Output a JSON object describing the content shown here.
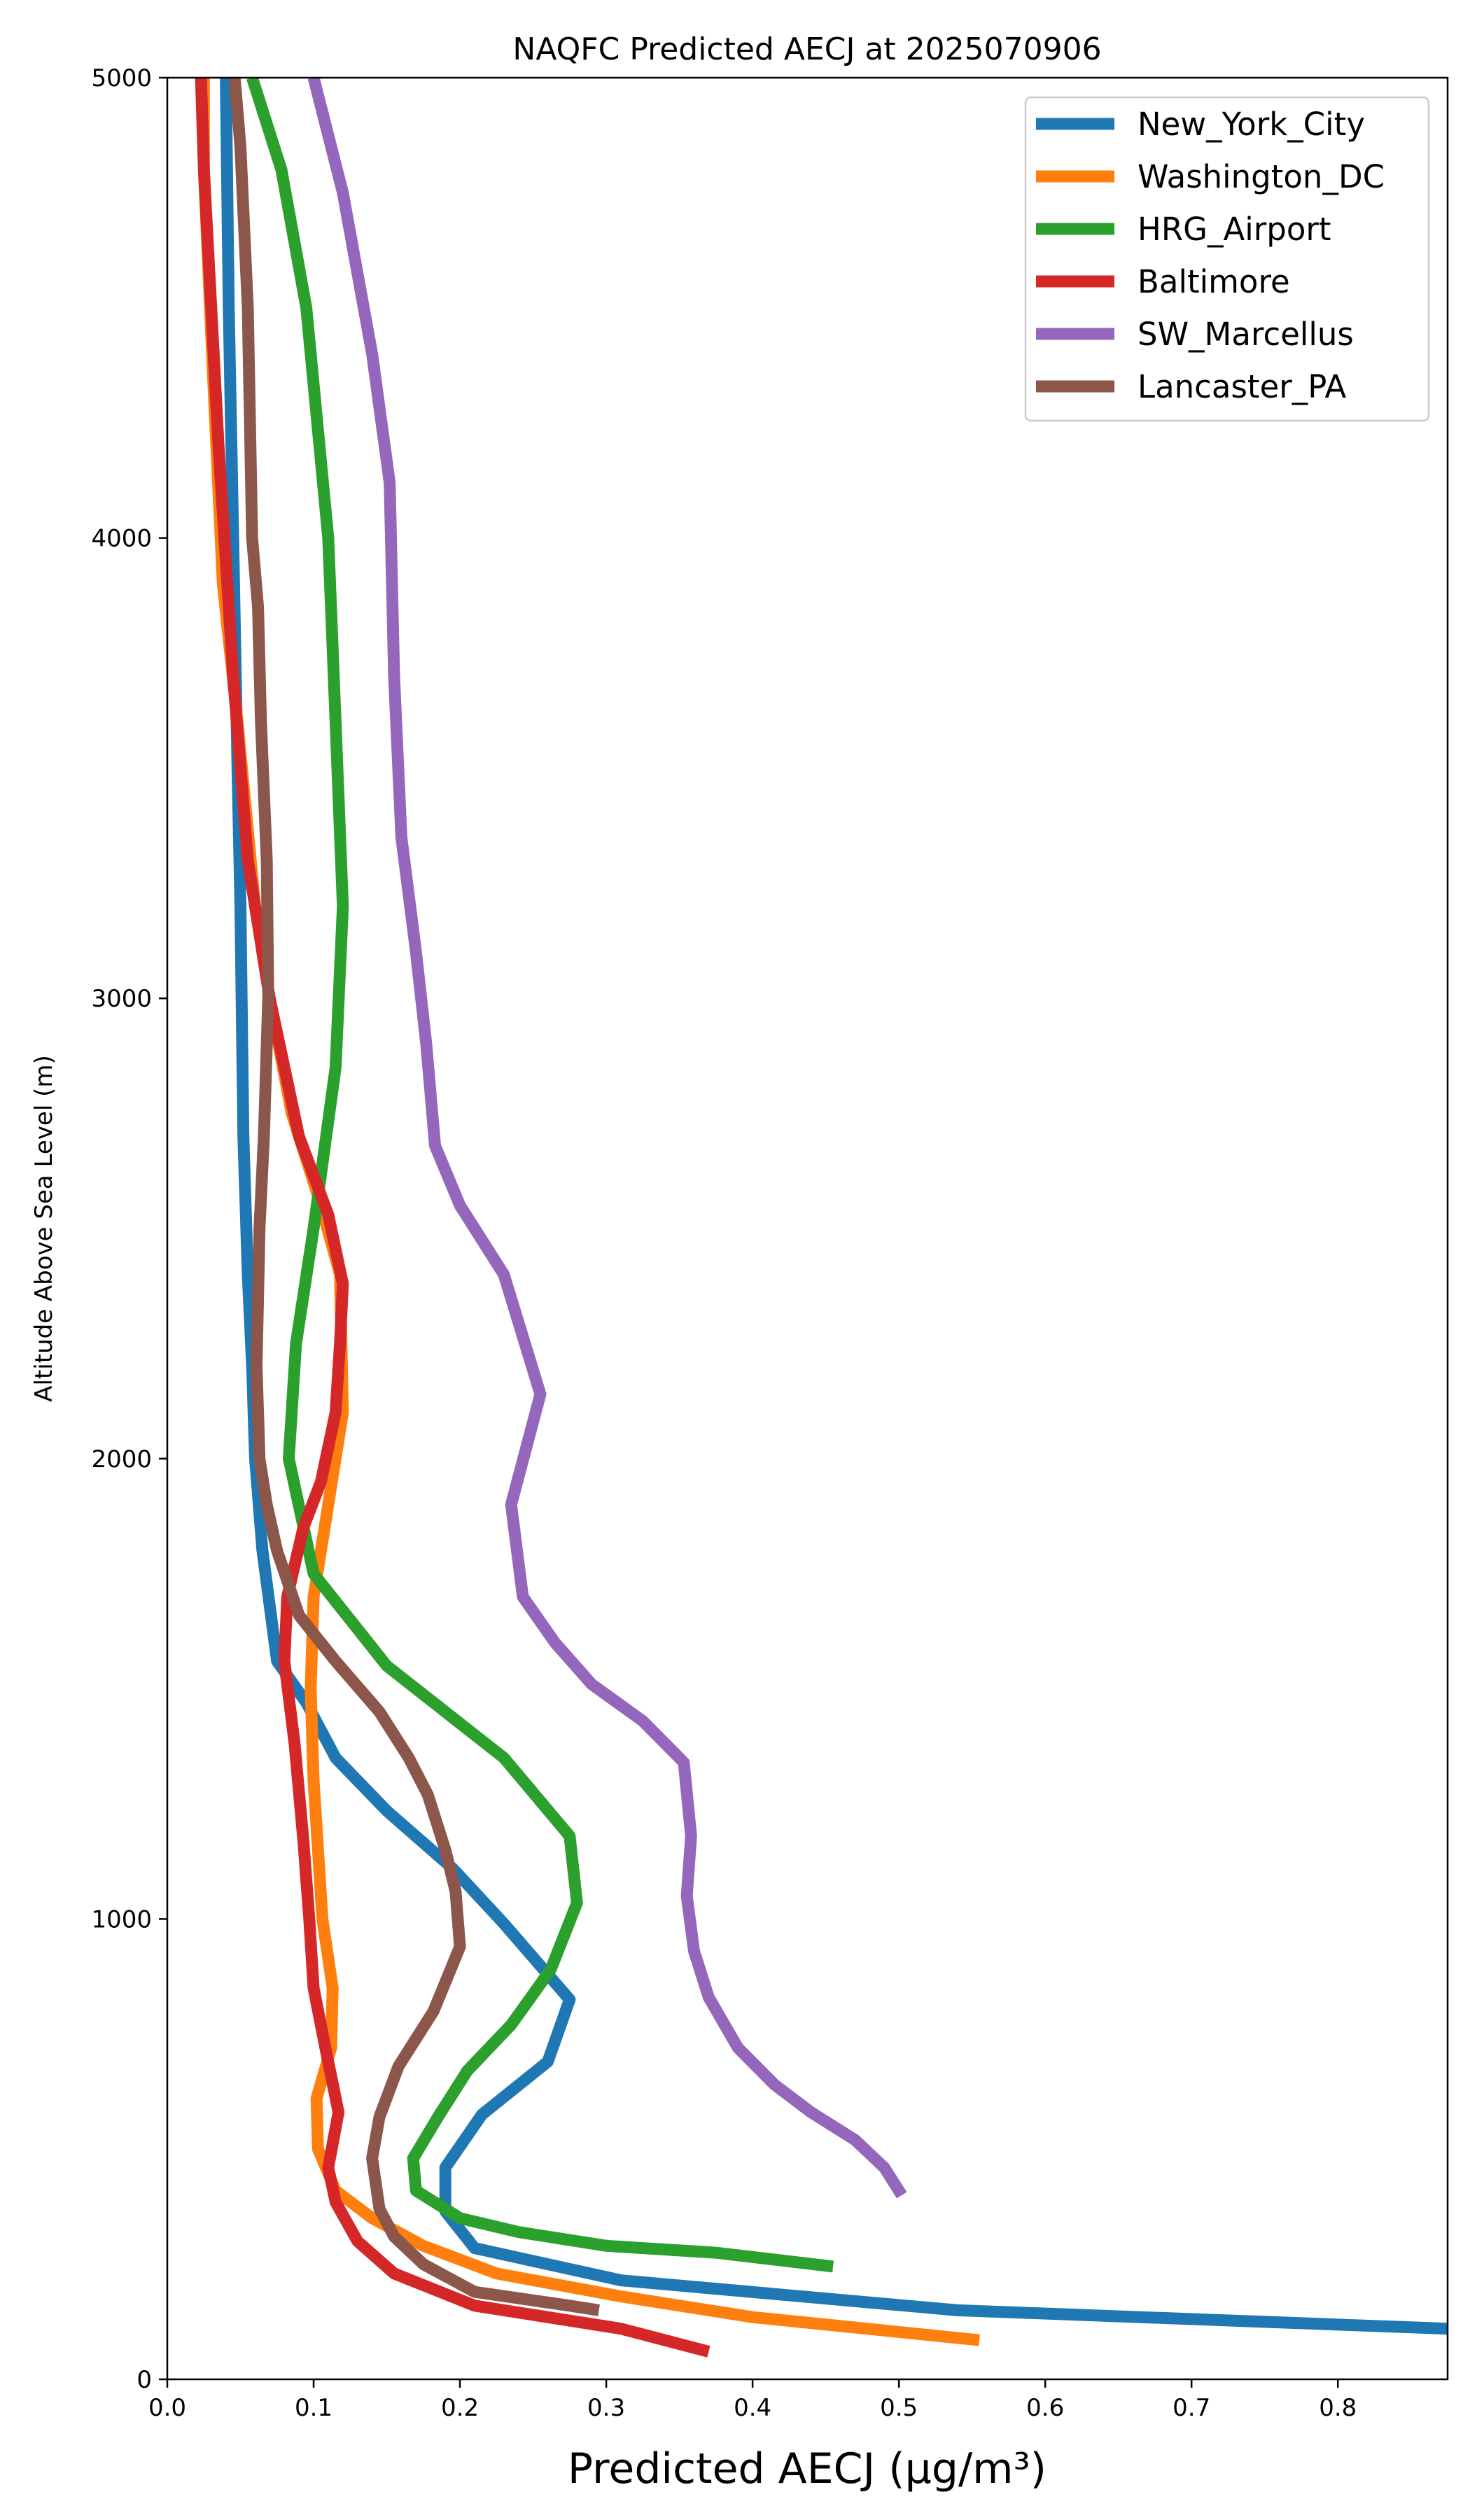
{
  "chart_data": {
    "type": "line",
    "title": "NAQFC Predicted AECJ at 2025070906",
    "xlabel": "Predicted AECJ (μg/m³)",
    "ylabel": "Altitude Above Sea Level (m)",
    "xlim": [
      0,
      0.875
    ],
    "ylim": [
      0,
      5000
    ],
    "xticks": [
      "0.0",
      "0.1",
      "0.2",
      "0.3",
      "0.4",
      "0.5",
      "0.6",
      "0.7",
      "0.8"
    ],
    "yticks": [
      "0",
      "1000",
      "2000",
      "3000",
      "4000",
      "5000"
    ],
    "grid": false,
    "legend_position": "top-right",
    "series": [
      {
        "name": "New_York_City",
        "color": "#1f77b4",
        "points": [
          [
            0.875,
            110
          ],
          [
            0.54,
            150
          ],
          [
            0.31,
            215
          ],
          [
            0.21,
            285
          ],
          [
            0.19,
            365
          ],
          [
            0.19,
            460
          ],
          [
            0.215,
            575
          ],
          [
            0.26,
            690
          ],
          [
            0.275,
            825
          ],
          [
            0.23,
            990
          ],
          [
            0.195,
            1110
          ],
          [
            0.15,
            1235
          ],
          [
            0.115,
            1350
          ],
          [
            0.095,
            1470
          ],
          [
            0.075,
            1560
          ],
          [
            0.065,
            1800
          ],
          [
            0.06,
            2000
          ],
          [
            0.058,
            2200
          ],
          [
            0.055,
            2400
          ],
          [
            0.052,
            2700
          ],
          [
            0.05,
            3200
          ],
          [
            0.048,
            3500
          ],
          [
            0.045,
            4000
          ],
          [
            0.042,
            4500
          ],
          [
            0.04,
            5000
          ]
        ]
      },
      {
        "name": "Washington_DC",
        "color": "#ff7f0e",
        "points": [
          [
            0.555,
            85
          ],
          [
            0.4,
            135
          ],
          [
            0.31,
            180
          ],
          [
            0.225,
            230
          ],
          [
            0.175,
            290
          ],
          [
            0.14,
            350
          ],
          [
            0.115,
            410
          ],
          [
            0.103,
            500
          ],
          [
            0.102,
            610
          ],
          [
            0.112,
            720
          ],
          [
            0.113,
            850
          ],
          [
            0.106,
            1000
          ],
          [
            0.1,
            1300
          ],
          [
            0.098,
            1500
          ],
          [
            0.1,
            1700
          ],
          [
            0.11,
            1900
          ],
          [
            0.12,
            2100
          ],
          [
            0.118,
            2400
          ],
          [
            0.105,
            2550
          ],
          [
            0.085,
            2750
          ],
          [
            0.07,
            3000
          ],
          [
            0.06,
            3200
          ],
          [
            0.048,
            3600
          ],
          [
            0.038,
            3900
          ],
          [
            0.032,
            4300
          ],
          [
            0.025,
            4800
          ],
          [
            0.025,
            5000
          ]
        ]
      },
      {
        "name": "HRG_Airport",
        "color": "#2ca02c",
        "points": [
          [
            0.455,
            245
          ],
          [
            0.375,
            275
          ],
          [
            0.3,
            290
          ],
          [
            0.24,
            320
          ],
          [
            0.2,
            350
          ],
          [
            0.17,
            410
          ],
          [
            0.168,
            480
          ],
          [
            0.185,
            570
          ],
          [
            0.205,
            670
          ],
          [
            0.235,
            770
          ],
          [
            0.262,
            890
          ],
          [
            0.28,
            1035
          ],
          [
            0.275,
            1180
          ],
          [
            0.23,
            1350
          ],
          [
            0.15,
            1550
          ],
          [
            0.1,
            1750
          ],
          [
            0.083,
            2000
          ],
          [
            0.088,
            2250
          ],
          [
            0.1,
            2500
          ],
          [
            0.115,
            2850
          ],
          [
            0.12,
            3200
          ],
          [
            0.115,
            3600
          ],
          [
            0.11,
            4000
          ],
          [
            0.095,
            4500
          ],
          [
            0.078,
            4800
          ],
          [
            0.058,
            5000
          ]
        ]
      },
      {
        "name": "Baltimore",
        "color": "#d62728",
        "points": [
          [
            0.37,
            60
          ],
          [
            0.31,
            110
          ],
          [
            0.21,
            160
          ],
          [
            0.155,
            230
          ],
          [
            0.13,
            300
          ],
          [
            0.115,
            385
          ],
          [
            0.11,
            460
          ],
          [
            0.117,
            580
          ],
          [
            0.108,
            720
          ],
          [
            0.1,
            850
          ],
          [
            0.097,
            1000
          ],
          [
            0.093,
            1170
          ],
          [
            0.087,
            1380
          ],
          [
            0.08,
            1560
          ],
          [
            0.082,
            1700
          ],
          [
            0.093,
            1850
          ],
          [
            0.105,
            1950
          ],
          [
            0.115,
            2100
          ],
          [
            0.118,
            2250
          ],
          [
            0.12,
            2380
          ],
          [
            0.11,
            2530
          ],
          [
            0.09,
            2700
          ],
          [
            0.08,
            2850
          ],
          [
            0.07,
            3000
          ],
          [
            0.055,
            3300
          ],
          [
            0.045,
            3700
          ],
          [
            0.035,
            4200
          ],
          [
            0.025,
            4800
          ],
          [
            0.023,
            5000
          ]
        ]
      },
      {
        "name": "SW_Marcellus",
        "color": "#9467bd",
        "points": [
          [
            0.502,
            400
          ],
          [
            0.49,
            460
          ],
          [
            0.47,
            520
          ],
          [
            0.44,
            580
          ],
          [
            0.415,
            640
          ],
          [
            0.39,
            720
          ],
          [
            0.37,
            830
          ],
          [
            0.36,
            930
          ],
          [
            0.355,
            1050
          ],
          [
            0.358,
            1180
          ],
          [
            0.353,
            1340
          ],
          [
            0.325,
            1430
          ],
          [
            0.29,
            1510
          ],
          [
            0.265,
            1600
          ],
          [
            0.243,
            1700
          ],
          [
            0.235,
            1900
          ],
          [
            0.255,
            2140
          ],
          [
            0.23,
            2400
          ],
          [
            0.2,
            2550
          ],
          [
            0.183,
            2680
          ],
          [
            0.177,
            2900
          ],
          [
            0.17,
            3100
          ],
          [
            0.16,
            3350
          ],
          [
            0.155,
            3700
          ],
          [
            0.152,
            4120
          ],
          [
            0.14,
            4400
          ],
          [
            0.12,
            4750
          ],
          [
            0.1,
            5000
          ]
        ]
      },
      {
        "name": "Lancaster_PA",
        "color": "#8c564b",
        "points": [
          [
            0.295,
            150
          ],
          [
            0.275,
            160
          ],
          [
            0.21,
            190
          ],
          [
            0.175,
            250
          ],
          [
            0.155,
            310
          ],
          [
            0.145,
            370
          ],
          [
            0.14,
            480
          ],
          [
            0.145,
            570
          ],
          [
            0.158,
            680
          ],
          [
            0.182,
            800
          ],
          [
            0.2,
            940
          ],
          [
            0.197,
            1060
          ],
          [
            0.19,
            1150
          ],
          [
            0.178,
            1270
          ],
          [
            0.165,
            1350
          ],
          [
            0.145,
            1450
          ],
          [
            0.115,
            1560
          ],
          [
            0.09,
            1660
          ],
          [
            0.075,
            1800
          ],
          [
            0.068,
            1900
          ],
          [
            0.063,
            2000
          ],
          [
            0.061,
            2200
          ],
          [
            0.063,
            2500
          ],
          [
            0.066,
            2700
          ],
          [
            0.069,
            3000
          ],
          [
            0.068,
            3300
          ],
          [
            0.064,
            3600
          ],
          [
            0.062,
            3850
          ],
          [
            0.058,
            4000
          ],
          [
            0.055,
            4500
          ],
          [
            0.05,
            4850
          ],
          [
            0.046,
            5000
          ]
        ]
      }
    ]
  }
}
